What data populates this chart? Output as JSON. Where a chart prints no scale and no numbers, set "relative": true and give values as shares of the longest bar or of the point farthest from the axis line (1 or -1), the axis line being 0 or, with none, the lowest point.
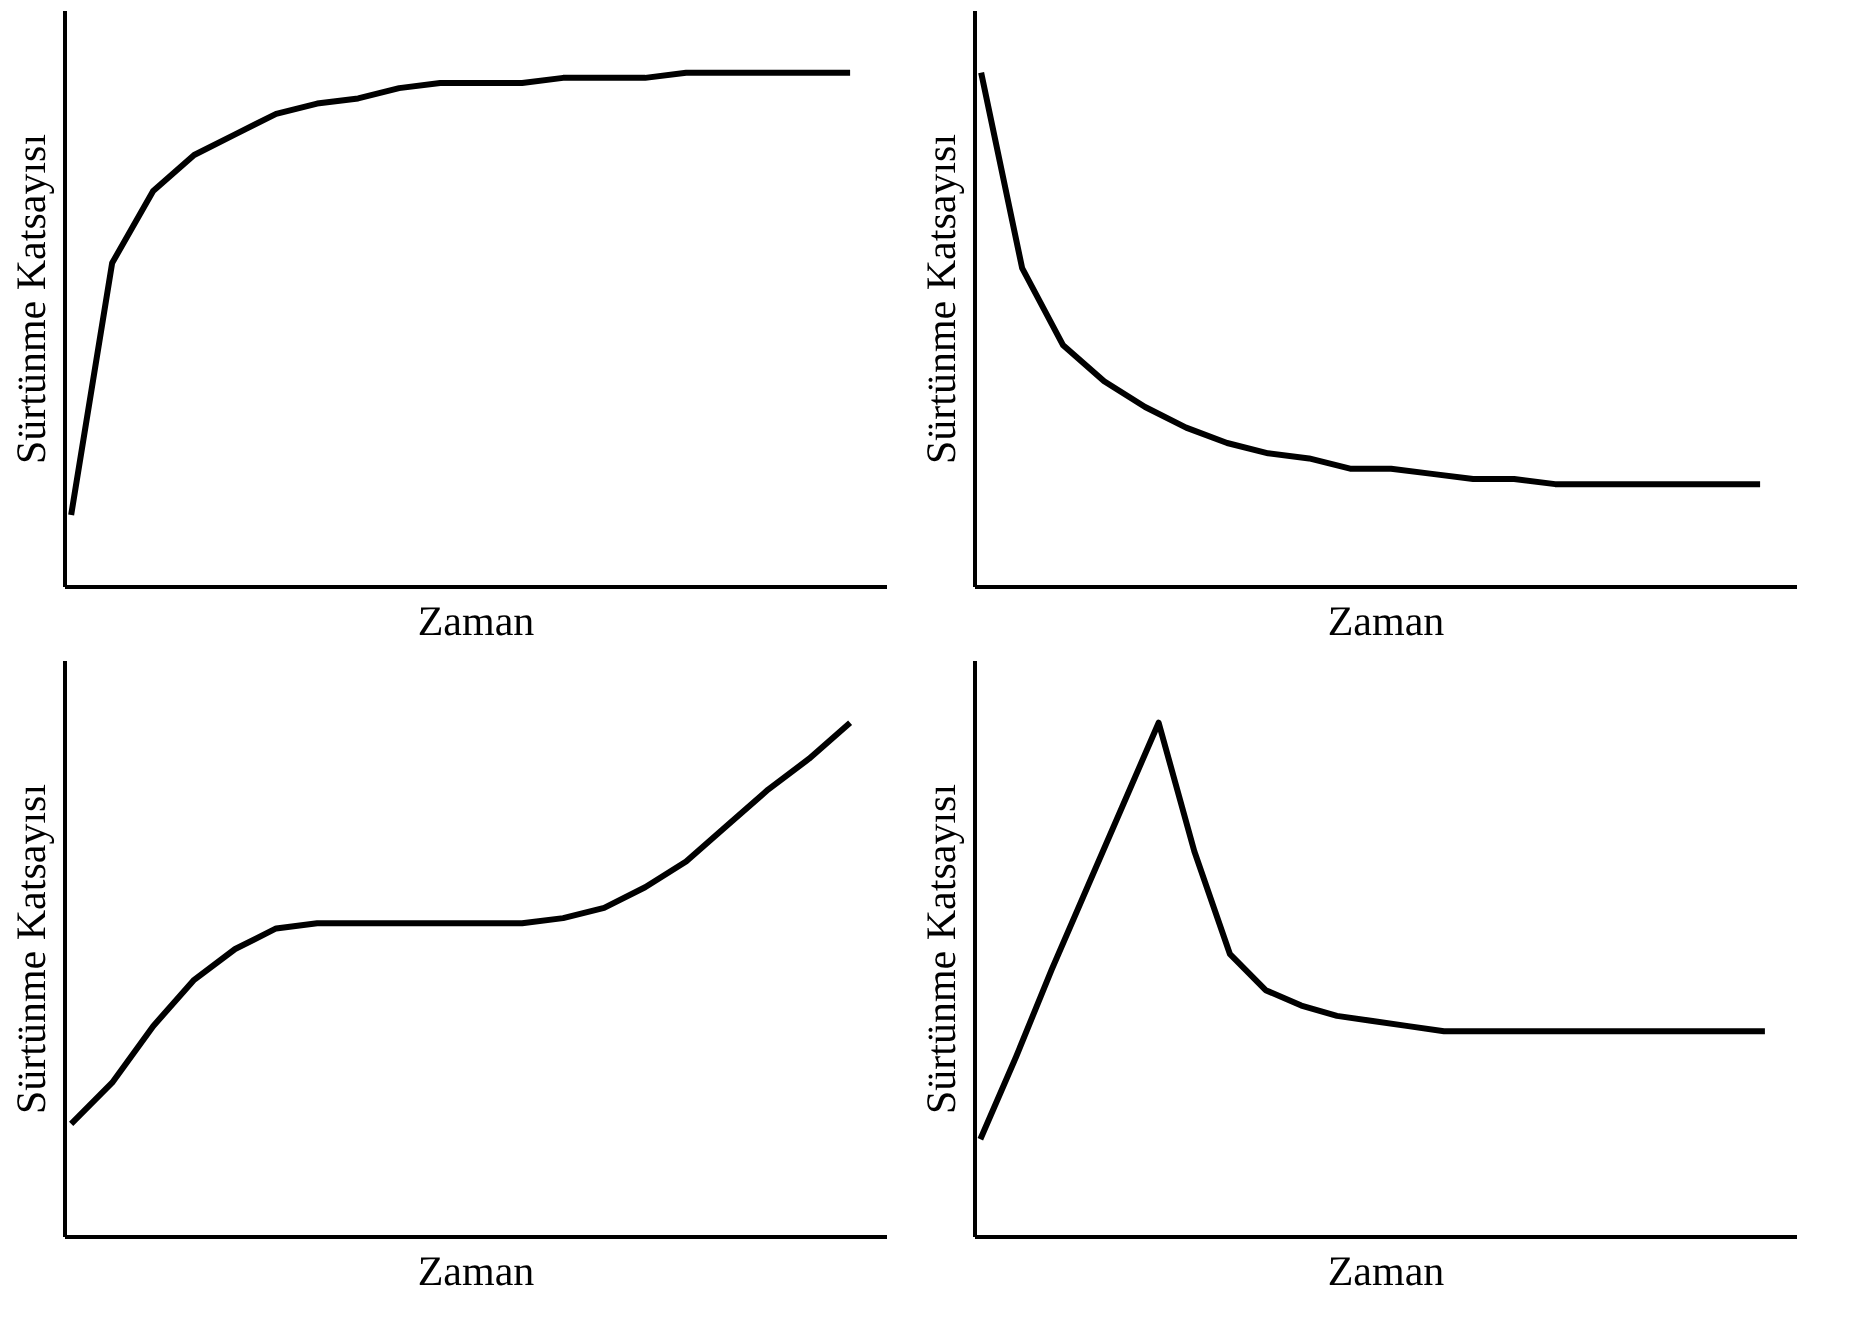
{
  "chart_data": [
    {
      "type": "line",
      "relative": true,
      "xlabel": "Zaman",
      "ylabel": "Sürtünme Katsayısı",
      "categories": [
        null,
        null,
        null,
        null,
        null,
        null,
        null,
        null,
        null,
        null,
        null,
        null,
        null,
        null,
        null,
        null,
        null,
        null,
        null,
        null
      ],
      "series": [
        {
          "color": "#000000",
          "values": [
            0.14,
            0.63,
            0.77,
            0.84,
            0.88,
            0.92,
            0.94,
            0.95,
            0.97,
            0.98,
            0.98,
            0.98,
            0.99,
            0.99,
            0.99,
            1.0,
            1.0,
            1.0,
            1.0,
            1.0
          ]
        }
      ],
      "marker": "none",
      "line_style": "solid"
    },
    {
      "type": "line",
      "relative": true,
      "xlabel": "Zaman",
      "ylabel": "Sürtünme Katsayısı",
      "categories": [
        null,
        null,
        null,
        null,
        null,
        null,
        null,
        null,
        null,
        null,
        null,
        null,
        null,
        null,
        null,
        null,
        null,
        null,
        null,
        null
      ],
      "series": [
        {
          "color": "#000000",
          "values": [
            1.0,
            0.62,
            0.47,
            0.4,
            0.35,
            0.31,
            0.28,
            0.26,
            0.25,
            0.23,
            0.23,
            0.22,
            0.21,
            0.21,
            0.2,
            0.2,
            0.2,
            0.2,
            0.2,
            0.2
          ]
        }
      ],
      "marker": "none",
      "line_style": "solid"
    },
    {
      "type": "line",
      "relative": true,
      "xlabel": "Zaman",
      "ylabel": "Sürtünme Katsayısı",
      "categories": [
        null,
        null,
        null,
        null,
        null,
        null,
        null,
        null,
        null,
        null,
        null,
        null,
        null,
        null,
        null,
        null,
        null,
        null,
        null,
        null
      ],
      "series": [
        {
          "color": "#000000",
          "values": [
            0.22,
            0.3,
            0.41,
            0.5,
            0.56,
            0.6,
            0.61,
            0.61,
            0.61,
            0.61,
            0.61,
            0.61,
            0.62,
            0.64,
            0.68,
            0.73,
            0.8,
            0.87,
            0.93,
            1.0
          ]
        }
      ],
      "marker": "none",
      "line_style": "solid"
    },
    {
      "type": "line",
      "relative": true,
      "xlabel": "Zaman",
      "ylabel": "Sürtünme Katsayısı",
      "categories": [
        null,
        null,
        null,
        null,
        null,
        null,
        null,
        null,
        null,
        null,
        null,
        null,
        null,
        null,
        null,
        null,
        null,
        null,
        null,
        null,
        null,
        null,
        null
      ],
      "series": [
        {
          "color": "#000000",
          "values": [
            0.19,
            0.35,
            0.52,
            0.68,
            0.84,
            1.0,
            0.75,
            0.55,
            0.48,
            0.45,
            0.43,
            0.42,
            0.41,
            0.4,
            0.4,
            0.4,
            0.4,
            0.4,
            0.4,
            0.4,
            0.4,
            0.4,
            0.4
          ]
        }
      ],
      "marker": "none",
      "line_style": "solid"
    }
  ]
}
